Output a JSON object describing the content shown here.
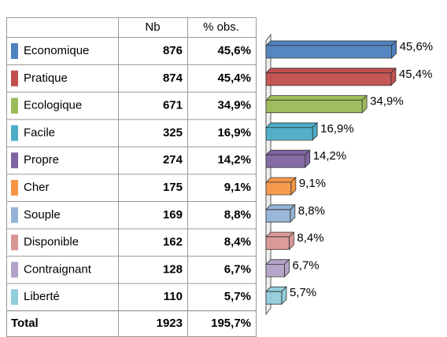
{
  "table": {
    "columns": [
      "Nb",
      "% obs."
    ],
    "rows": [
      {
        "label": "Economique",
        "color": "#4f81bd",
        "nb": 876,
        "pct": 45.6,
        "pct_label": "45,6%"
      },
      {
        "label": "Pratique",
        "color": "#c0504d",
        "nb": 874,
        "pct": 45.4,
        "pct_label": "45,4%"
      },
      {
        "label": "Ecologique",
        "color": "#9bbb59",
        "nb": 671,
        "pct": 34.9,
        "pct_label": "34,9%"
      },
      {
        "label": "Facile",
        "color": "#4bacc6",
        "nb": 325,
        "pct": 16.9,
        "pct_label": "16,9%"
      },
      {
        "label": "Propre",
        "color": "#8064a2",
        "nb": 274,
        "pct": 14.2,
        "pct_label": "14,2%"
      },
      {
        "label": "Cher",
        "color": "#f79646",
        "nb": 175,
        "pct": 9.1,
        "pct_label": "9,1%"
      },
      {
        "label": "Souple",
        "color": "#95b3d7",
        "nb": 169,
        "pct": 8.8,
        "pct_label": "8,8%"
      },
      {
        "label": "Disponible",
        "color": "#d99694",
        "nb": 162,
        "pct": 8.4,
        "pct_label": "8,4%"
      },
      {
        "label": "Contraignant",
        "color": "#b3a2c7",
        "nb": 128,
        "pct": 6.7,
        "pct_label": "6,7%"
      },
      {
        "label": "Liberté",
        "color": "#92cddc",
        "nb": 110,
        "pct": 5.7,
        "pct_label": "5,7%"
      }
    ],
    "total": {
      "label": "Total",
      "nb": 1923,
      "pct_label": "195,7%"
    },
    "xlim": [
      0,
      50
    ]
  }
}
